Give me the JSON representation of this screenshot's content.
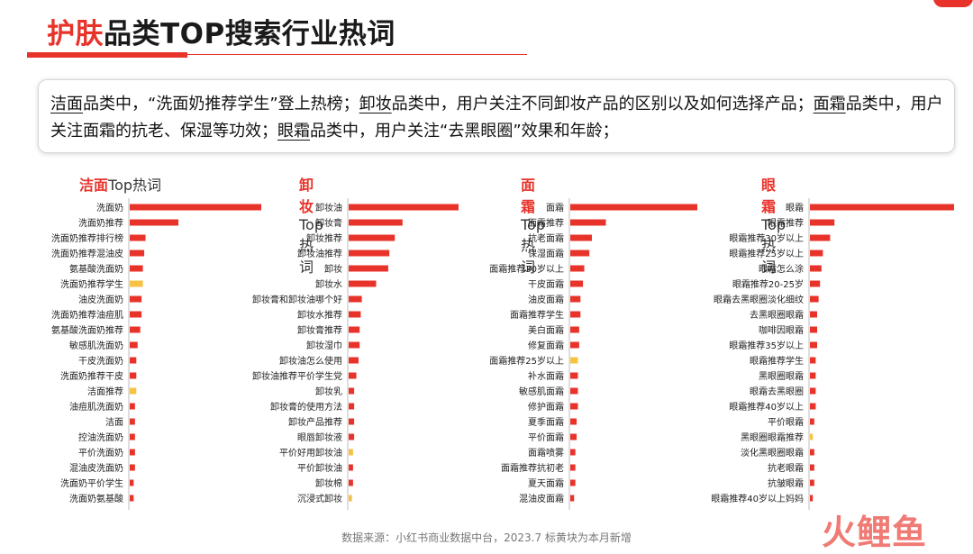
{
  "title": {
    "highlight": "护肤",
    "rest": "品类TOP搜索行业热词"
  },
  "summary": [
    {
      "text": "洁面",
      "u": true
    },
    {
      "text": "品类中，“洗面奶推荐学生”登上热榜；",
      "u": false
    },
    {
      "text": "卸妆",
      "u": true
    },
    {
      "text": "品类中，用户关注不同卸妆产品的区别以及如何选择产品；",
      "u": false
    },
    {
      "text": "面霜",
      "u": true
    },
    {
      "text": "品类中，用户关注面霜的抗老、保湿等功效；",
      "u": false
    },
    {
      "text": "眼霜",
      "u": true
    },
    {
      "text": "品类中，用户关注“去黑眼圈”效果和年龄；",
      "u": false
    }
  ],
  "colors": {
    "accent": "#e8332a",
    "new": "#f6c244"
  },
  "chart_data": [
    {
      "type": "bar",
      "orientation": "horizontal",
      "title_highlight": "洁面",
      "title_rest": "Top热词",
      "categories": [
        "洗面奶",
        "洗面奶推荐",
        "洗面奶推荐排行榜",
        "洗面奶推荐混油皮",
        "氨基酸洗面奶",
        "洗面奶推荐学生",
        "油皮洗面奶",
        "洗面奶推荐油痘肌",
        "氨基酸洗面奶推荐",
        "敏感肌洗面奶",
        "干皮洗面奶",
        "洗面奶推荐干皮",
        "洁面推荐",
        "油痘肌洗面奶",
        "洁面",
        "控油洗面奶",
        "平价洗面奶",
        "混油皮洗面奶",
        "洗面奶平价学生",
        "洗面奶氨基酸"
      ],
      "values": [
        100,
        37,
        12,
        11,
        10,
        10,
        9,
        9,
        8,
        6,
        5,
        5,
        5,
        4,
        4,
        4,
        4,
        4,
        3,
        3
      ],
      "new_this_month": [
        false,
        false,
        false,
        false,
        false,
        true,
        false,
        false,
        false,
        false,
        false,
        false,
        true,
        false,
        false,
        false,
        false,
        false,
        false,
        false
      ]
    },
    {
      "type": "bar",
      "orientation": "horizontal",
      "title_highlight": "卸妆",
      "title_rest": "Top热词",
      "categories": [
        "卸妆油",
        "卸妆膏",
        "卸妆推荐",
        "卸妆油推荐",
        "卸妆",
        "卸妆水",
        "卸妆膏和卸妆油哪个好",
        "卸妆水推荐",
        "卸妆膏推荐",
        "卸妆湿巾",
        "卸妆油怎么使用",
        "卸妆油推荐平价学生党",
        "卸妆乳",
        "卸妆膏的使用方法",
        "卸妆产品推荐",
        "眼唇卸妆液",
        "平价好用卸妆油",
        "平价卸妆油",
        "卸妆棉",
        "沉浸式卸妆"
      ],
      "values": [
        100,
        49,
        42,
        37,
        36,
        25,
        12,
        11,
        10,
        10,
        9,
        7,
        5,
        5,
        5,
        5,
        4,
        4,
        4,
        3
      ],
      "new_this_month": [
        false,
        false,
        false,
        false,
        false,
        false,
        false,
        false,
        false,
        false,
        false,
        false,
        false,
        false,
        false,
        false,
        true,
        false,
        false,
        true
      ]
    },
    {
      "type": "bar",
      "orientation": "horizontal",
      "title_highlight": "面霜",
      "title_rest": "Top热词",
      "categories": [
        "面霜",
        "面霜推荐",
        "抗老面霜",
        "保湿面霜",
        "面霜推荐30岁以上",
        "干皮面霜",
        "油皮面霜",
        "面霜推荐学生",
        "美白面霜",
        "修复面霜",
        "面霜推荐25岁以上",
        "补水面霜",
        "敏感肌面霜",
        "修护面霜",
        "夏季面霜",
        "平价面霜",
        "面霜喷雾",
        "面霜推荐抗初老",
        "夏天面霜",
        "混油皮面霜"
      ],
      "values": [
        100,
        28,
        17,
        15,
        11,
        10,
        8,
        8,
        7,
        7,
        6,
        6,
        6,
        6,
        5,
        5,
        4,
        4,
        4,
        3
      ],
      "new_this_month": [
        false,
        false,
        false,
        false,
        false,
        false,
        false,
        false,
        false,
        false,
        true,
        false,
        false,
        false,
        false,
        false,
        false,
        false,
        false,
        false
      ]
    },
    {
      "type": "bar",
      "orientation": "horizontal",
      "title_highlight": "眼霜",
      "title_rest": "Top热词",
      "categories": [
        "眼霜",
        "眼霜推荐",
        "眼霜推荐30岁以上",
        "眼霜推荐25岁以上",
        "眼霜怎么涂",
        "眼霜推荐20-25岁",
        "眼霜去黑眼圈淡化细纹",
        "去黑眼圈眼霜",
        "咖啡因眼霜",
        "眼霜推荐35岁以上",
        "眼霜推荐学生",
        "黑眼圈眼霜",
        "眼霜去黑眼圈",
        "眼霜推荐40岁以上",
        "平价眼霜",
        "黑眼圈眼霜推荐",
        "淡化黑眼圈眼霜",
        "抗老眼霜",
        "抗皱眼霜",
        "眼霜推荐40岁以上妈妈"
      ],
      "values": [
        100,
        17,
        14,
        9,
        8,
        7,
        6,
        5,
        5,
        5,
        4,
        4,
        4,
        4,
        3,
        2,
        3,
        3,
        3,
        2
      ],
      "new_this_month": [
        false,
        false,
        false,
        false,
        false,
        false,
        false,
        false,
        false,
        false,
        false,
        false,
        false,
        false,
        false,
        true,
        false,
        false,
        false,
        false
      ]
    }
  ],
  "source_note": "数据来源：小红书商业数据中台，2023.7 标黄块为本月新增",
  "watermark": "火鲤鱼"
}
